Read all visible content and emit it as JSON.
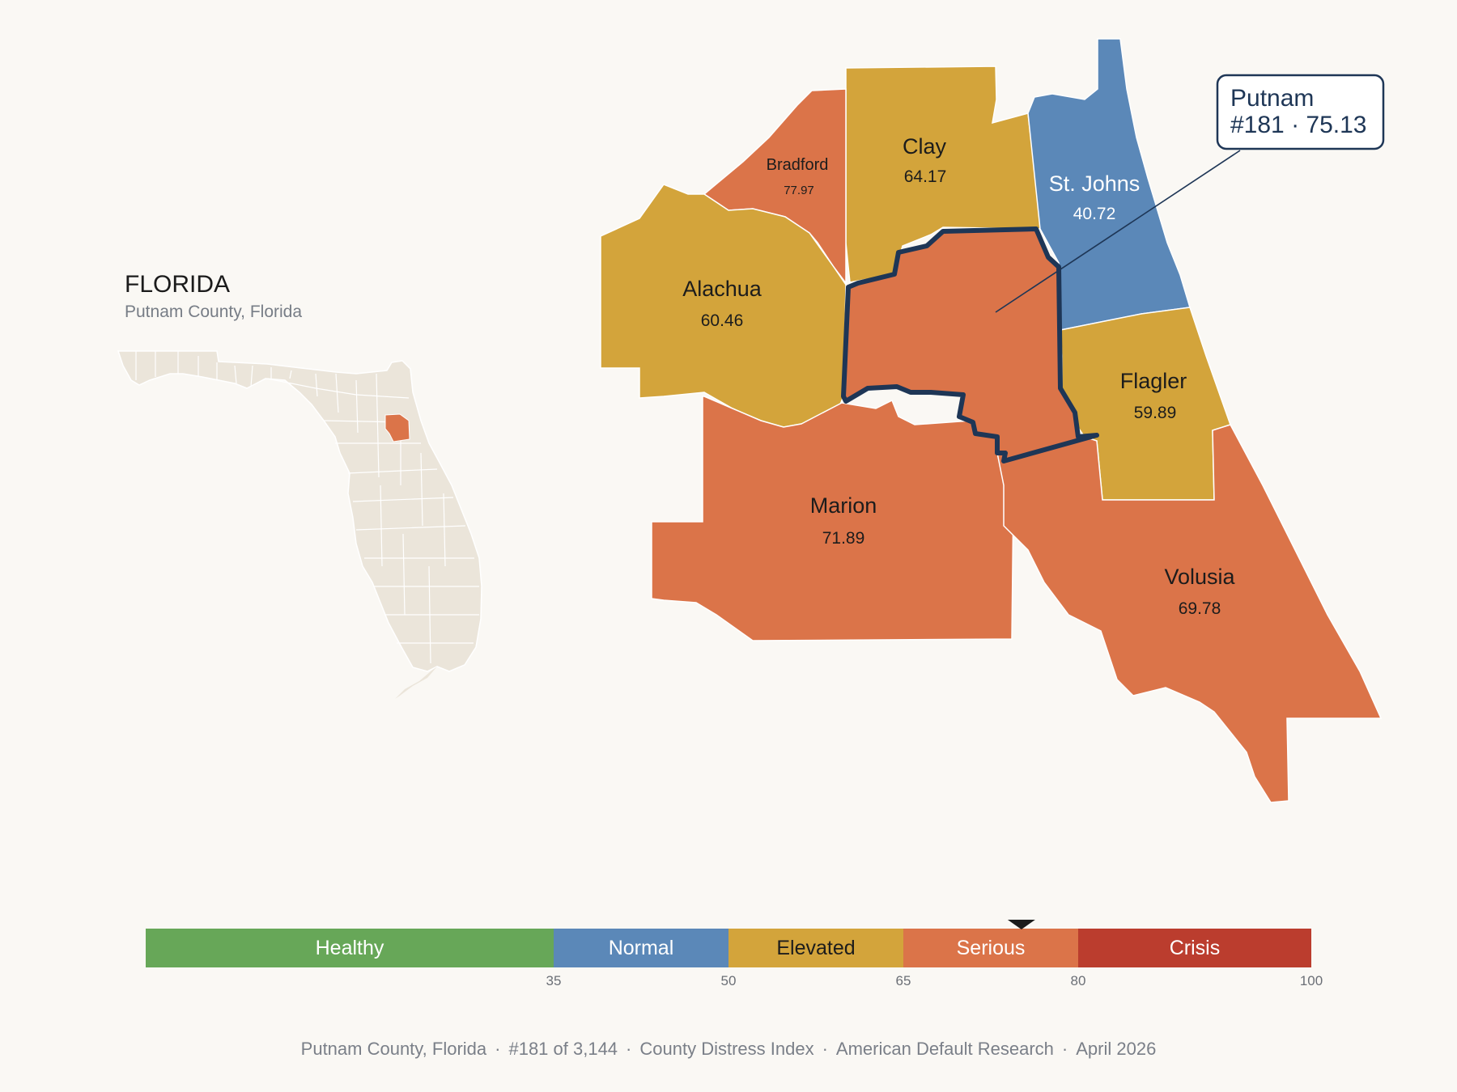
{
  "header": {
    "state_title": "FLORIDA",
    "subtitle": "Putnam County, Florida"
  },
  "callout": {
    "line1": "Putnam",
    "line2": "#181 · 75.13"
  },
  "counties": [
    {
      "name": "Bradford",
      "value": "77.97",
      "band": "Serious"
    },
    {
      "name": "Clay",
      "value": "64.17",
      "band": "Elevated"
    },
    {
      "name": "St. Johns",
      "value": "40.72",
      "band": "Normal"
    },
    {
      "name": "Alachua",
      "value": "60.46",
      "band": "Elevated"
    },
    {
      "name": "Flagler",
      "value": "59.89",
      "band": "Elevated"
    },
    {
      "name": "Marion",
      "value": "71.89",
      "band": "Serious"
    },
    {
      "name": "Volusia",
      "value": "69.78",
      "band": "Serious"
    },
    {
      "name": "Putnam",
      "value": "75.13",
      "band": "Serious",
      "highlighted": true
    }
  ],
  "legend": {
    "bands": [
      {
        "label": "Healthy",
        "from": 0,
        "to": 35,
        "color": "#67a758"
      },
      {
        "label": "Normal",
        "from": 35,
        "to": 50,
        "color": "#5b88b8"
      },
      {
        "label": "Elevated",
        "from": 50,
        "to": 65,
        "color": "#d3a43b"
      },
      {
        "label": "Serious",
        "from": 65,
        "to": 80,
        "color": "#db7449"
      },
      {
        "label": "Crisis",
        "from": 80,
        "to": 100,
        "color": "#bb3d2e"
      }
    ],
    "ticks": [
      "35",
      "50",
      "65",
      "80",
      "100"
    ],
    "marker_value": 75.13
  },
  "footer": {
    "county": "Putnam County, Florida",
    "rank": "#181 of 3,144",
    "index": "County Distress Index",
    "org": "American Default Research",
    "date": "April 2026"
  },
  "colors": {
    "background": "#faf8f4",
    "inset_land": "#ebe5da",
    "highlight_outline": "#1e3656"
  }
}
